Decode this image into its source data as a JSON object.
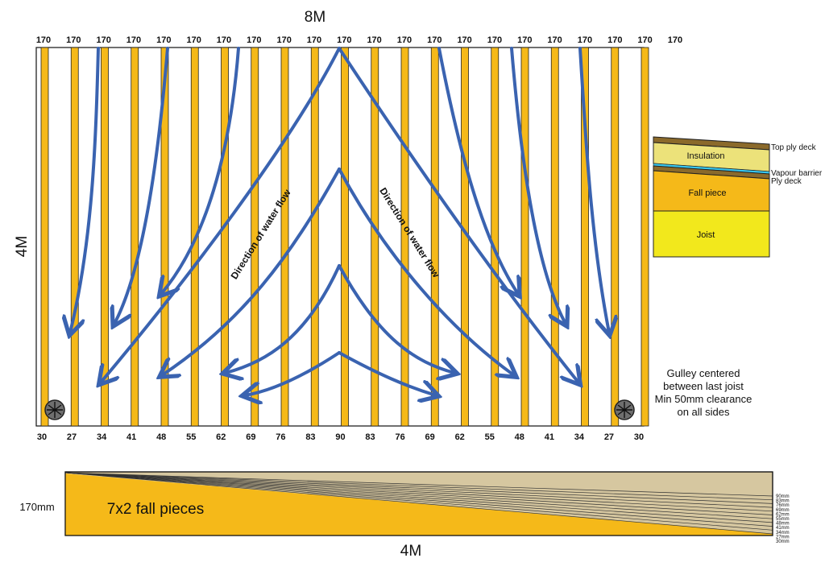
{
  "plan": {
    "width_label": "8M",
    "height_label": "4M",
    "top_values": [
      "170",
      "170",
      "170",
      "170",
      "170",
      "170",
      "170",
      "170",
      "170",
      "170",
      "170",
      "170",
      "170",
      "170",
      "170",
      "170",
      "170",
      "170",
      "170",
      "170",
      "170",
      "170"
    ],
    "bottom_values": [
      "30",
      "27",
      "34",
      "41",
      "48",
      "55",
      "62",
      "69",
      "76",
      "83",
      "90",
      "83",
      "76",
      "69",
      "62",
      "55",
      "48",
      "41",
      "34",
      "27",
      "30"
    ],
    "flow_label_left": "Direction of water flow",
    "flow_label_right": "Direction of water flow"
  },
  "section": {
    "layers": [
      "Top ply deck",
      "Insulation",
      "Vapour barrier",
      "Ply deck",
      "Fall piece",
      "Joist"
    ]
  },
  "gulley_note": [
    "Gulley centered",
    "between last joist",
    "Min 50mm clearance",
    "on all sides"
  ],
  "fall": {
    "label": "7x2 fall pieces",
    "height_label": "170mm",
    "length_label": "4M",
    "end_depths": [
      "90mm",
      "83mm",
      "76mm",
      "69mm",
      "62mm",
      "55mm",
      "48mm",
      "41mm",
      "34mm",
      "27mm",
      "30mm"
    ]
  },
  "colors": {
    "joist": "#f5b919",
    "flow_arrow": "#3a63b0",
    "insulation": "#ece27a",
    "fall_piece": "#f5b919",
    "joist_section": "#f2e81c",
    "deck": "#8b6a2b",
    "vapour": "#37c7ef",
    "fall_top": "#d6c7a0"
  }
}
